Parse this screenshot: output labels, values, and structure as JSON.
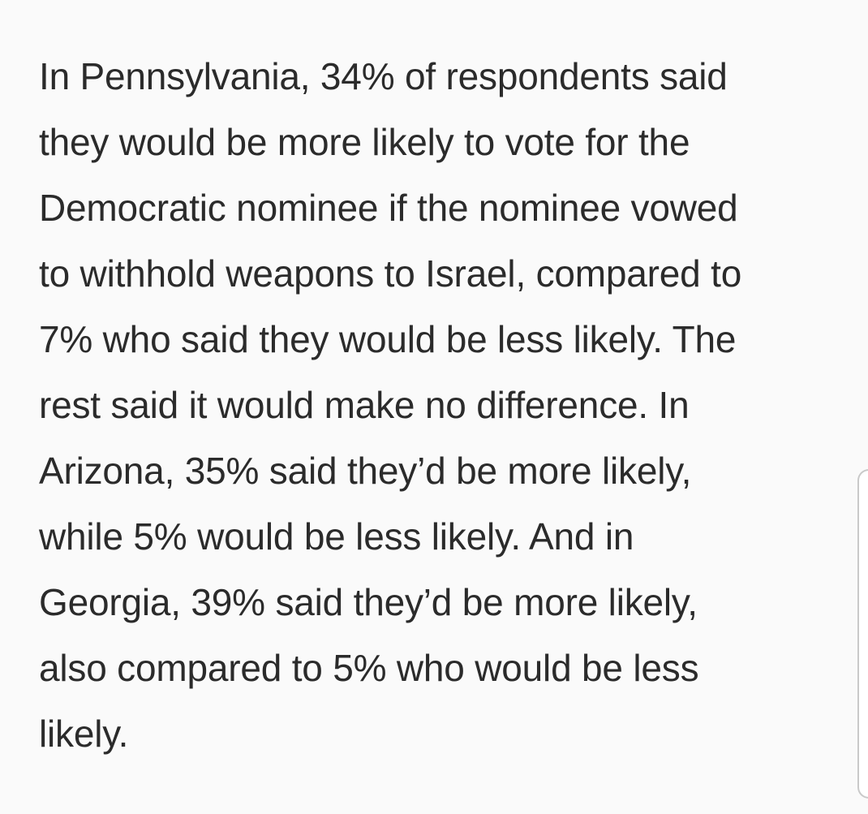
{
  "article": {
    "lines": [
      "In Pennsylvania, 34% of respondents said",
      "they would be more likely to vote for the",
      "Democratic nominee if the nominee vowed",
      "to withhold weapons to Israel, compared to",
      "7% who said they would be less likely. The",
      "rest said it would make no difference. In",
      "Arizona, 35% said they’d be more likely,",
      "while 5% would be less likely. And in",
      "Georgia, 39% said they’d be more likely,",
      "also compared to 5% who would be less",
      "likely."
    ]
  }
}
